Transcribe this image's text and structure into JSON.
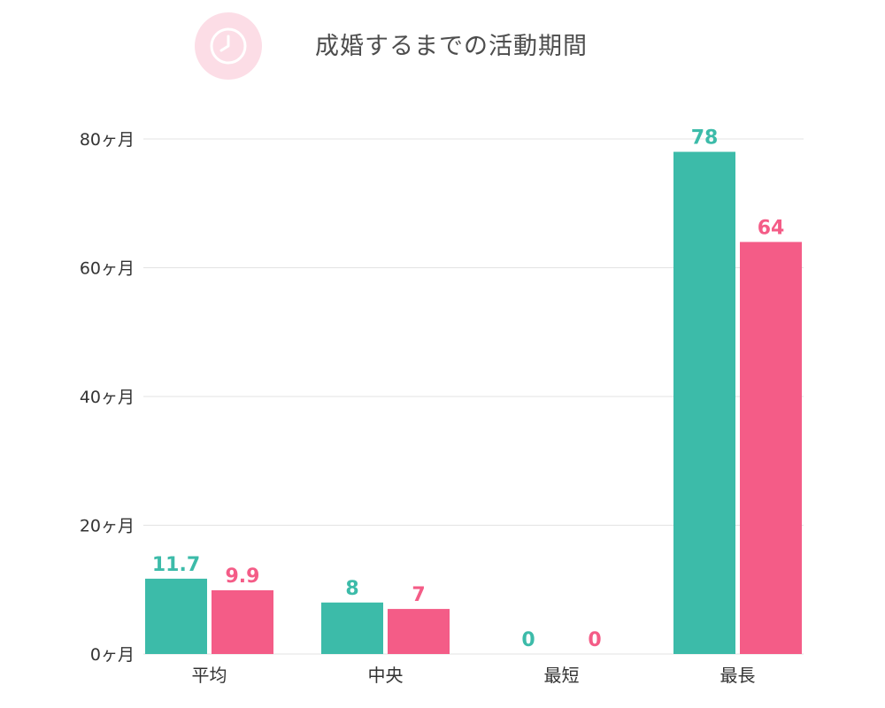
{
  "header": {
    "title": "成婚するまでの活動期間",
    "icon": "clock-icon"
  },
  "colors": {
    "series_1": "#3cbba9",
    "series_2": "#f45c87",
    "badge_bg": "#fcdde6",
    "grid": "#e3e3e3"
  },
  "chart_data": {
    "type": "bar",
    "title": "成婚するまでの活動期間",
    "xlabel": "",
    "ylabel": "",
    "ylim": [
      0,
      80
    ],
    "yticks": [
      0,
      20,
      40,
      60,
      80
    ],
    "ytick_labels": [
      "0ヶ月",
      "20ヶ月",
      "40ヶ月",
      "60ヶ月",
      "80ヶ月"
    ],
    "categories": [
      "平均",
      "中央",
      "最短",
      "最長"
    ],
    "series": [
      {
        "values": [
          11.7,
          8,
          0,
          78
        ],
        "labels": [
          "11.7",
          "8",
          "0",
          "78"
        ],
        "color": "#3cbba9"
      },
      {
        "values": [
          9.9,
          7,
          0,
          64
        ],
        "labels": [
          "9.9",
          "7",
          "0",
          "64"
        ],
        "color": "#f45c87"
      }
    ],
    "grid": true,
    "legend": "none"
  }
}
